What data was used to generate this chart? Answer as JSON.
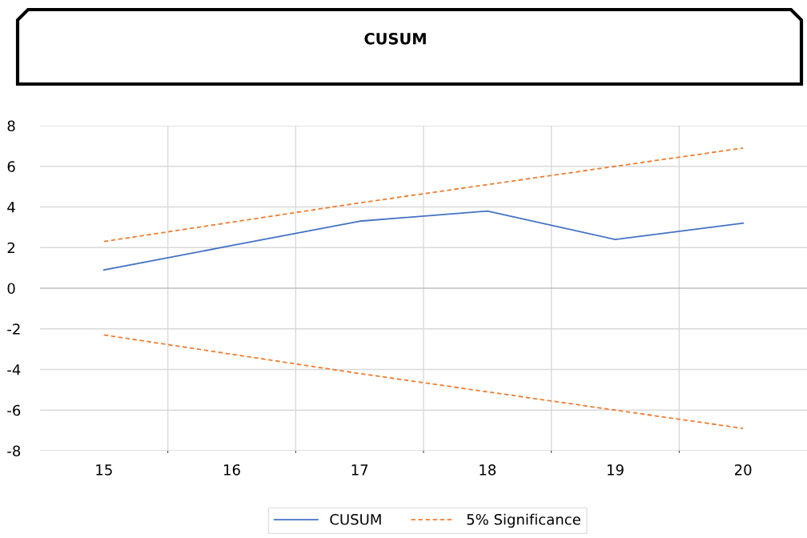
{
  "chart_data": {
    "type": "line",
    "title": "CUSUM",
    "categories": [
      "15",
      "16",
      "17",
      "18",
      "19",
      "20"
    ],
    "series": [
      {
        "name": "CUSUM",
        "color": "#4472c4",
        "line_style": "solid",
        "values": [
          0.9,
          2.1,
          3.3,
          3.8,
          2.4,
          3.2
        ]
      },
      {
        "name": "5% Significance",
        "color": "#ed7d31",
        "line_style": "dashed",
        "values": [
          2.3,
          3.25,
          4.2,
          5.1,
          6.0,
          6.9
        ]
      },
      {
        "color": "#ed7d31",
        "line_style": "dashed",
        "values": [
          -2.3,
          -3.25,
          -4.2,
          -5.1,
          -6.0,
          -6.9
        ]
      }
    ],
    "ylim": [
      -8,
      8
    ],
    "yticks": [
      -8,
      -6,
      -4,
      -2,
      0,
      2,
      4,
      6,
      8
    ],
    "grid": true,
    "legend": "bottom",
    "marker": "none"
  }
}
